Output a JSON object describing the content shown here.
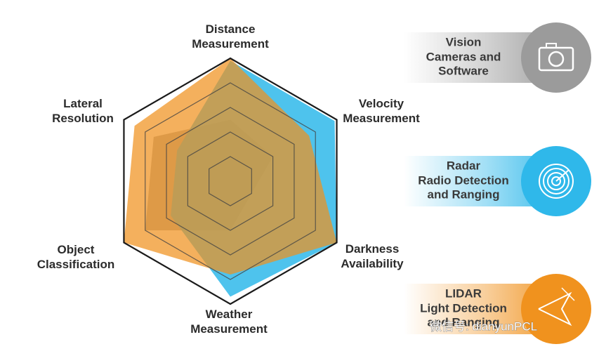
{
  "chart_data": {
    "type": "radar",
    "categories": [
      "Distance Measurement",
      "Velocity Measurement",
      "Darkness Availability",
      "Weather Measurement",
      "Object Classification",
      "Lateral Resolution"
    ],
    "ylim": [
      0,
      5
    ],
    "yticks": [
      1,
      2,
      3,
      4,
      5
    ],
    "grid": true,
    "series": [
      {
        "name": "Vision",
        "description": [
          "Cameras and",
          "Software"
        ],
        "color": "#9b9b9b",
        "values": [
          2.5,
          2,
          1,
          2,
          4,
          3.6
        ]
      },
      {
        "name": "Radar",
        "description": [
          "Radio Detection",
          "and Ranging"
        ],
        "color": "#2fb8ea",
        "values": [
          4.9,
          4.9,
          5,
          4.7,
          2.8,
          2.5
        ]
      },
      {
        "name": "LIDAR",
        "description": [
          "Light Detection",
          "and Ranging"
        ],
        "color": "#f0921e",
        "values": [
          5,
          3.7,
          5,
          3.8,
          5,
          4.5
        ]
      }
    ],
    "watermark": "微信号: dianyunPCL"
  }
}
